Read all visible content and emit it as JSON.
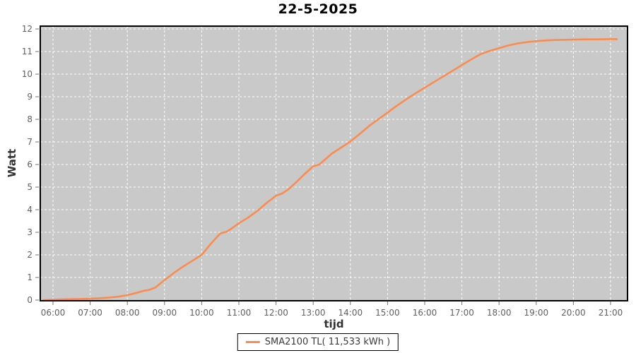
{
  "title": "22-5-2025",
  "axes": {
    "y_label": "Watt",
    "x_label": "tijd",
    "y_ticks": [
      0,
      1,
      2,
      3,
      4,
      5,
      6,
      7,
      8,
      9,
      10,
      11,
      12
    ],
    "x_ticks": [
      "06:00",
      "07:00",
      "08:00",
      "09:00",
      "10:00",
      "11:00",
      "12:00",
      "13:00",
      "14:00",
      "15:00",
      "16:00",
      "17:00",
      "18:00",
      "19:00",
      "20:00",
      "21:00"
    ]
  },
  "legend": {
    "series_label": "SMA2100 TL( 11,533 kWh )"
  },
  "colors": {
    "line": "#fa8c51",
    "plot_bg": "#c9c9c9",
    "grid": "#ffffff",
    "border": "#000000",
    "tick": "#707070",
    "tick_text": "#606060"
  },
  "chart_data": {
    "type": "line",
    "title": "22-5-2025",
    "xlabel": "tijd",
    "ylabel": "Watt",
    "ylim": [
      0,
      12
    ],
    "x_range": [
      "05:40",
      "21:27"
    ],
    "grid": true,
    "legend_position": "bottom-center",
    "series": [
      {
        "name": "SMA2100 TL( 11,533 kWh )",
        "total_kwh_label": "11,533 kWh",
        "points": [
          [
            "05:45",
            0.0
          ],
          [
            "06:00",
            0.02
          ],
          [
            "06:15",
            0.03
          ],
          [
            "06:30",
            0.04
          ],
          [
            "06:45",
            0.05
          ],
          [
            "07:00",
            0.06
          ],
          [
            "07:15",
            0.08
          ],
          [
            "07:30",
            0.11
          ],
          [
            "07:45",
            0.15
          ],
          [
            "08:00",
            0.22
          ],
          [
            "08:15",
            0.32
          ],
          [
            "08:25",
            0.4
          ],
          [
            "08:35",
            0.45
          ],
          [
            "08:45",
            0.55
          ],
          [
            "09:00",
            0.88
          ],
          [
            "09:15",
            1.2
          ],
          [
            "09:30",
            1.48
          ],
          [
            "09:45",
            1.74
          ],
          [
            "10:00",
            2.0
          ],
          [
            "10:15",
            2.5
          ],
          [
            "10:30",
            2.95
          ],
          [
            "10:40",
            3.02
          ],
          [
            "10:50",
            3.2
          ],
          [
            "11:00",
            3.4
          ],
          [
            "11:15",
            3.65
          ],
          [
            "11:30",
            3.95
          ],
          [
            "11:45",
            4.3
          ],
          [
            "12:00",
            4.62
          ],
          [
            "12:10",
            4.72
          ],
          [
            "12:20",
            4.9
          ],
          [
            "12:30",
            5.15
          ],
          [
            "12:45",
            5.55
          ],
          [
            "13:00",
            5.92
          ],
          [
            "13:10",
            6.0
          ],
          [
            "13:30",
            6.48
          ],
          [
            "13:45",
            6.75
          ],
          [
            "14:00",
            7.02
          ],
          [
            "14:15",
            7.35
          ],
          [
            "14:30",
            7.7
          ],
          [
            "14:45",
            8.0
          ],
          [
            "15:00",
            8.3
          ],
          [
            "15:15",
            8.6
          ],
          [
            "15:30",
            8.88
          ],
          [
            "15:45",
            9.15
          ],
          [
            "16:00",
            9.4
          ],
          [
            "16:15",
            9.65
          ],
          [
            "16:30",
            9.9
          ],
          [
            "16:45",
            10.15
          ],
          [
            "17:00",
            10.4
          ],
          [
            "17:15",
            10.65
          ],
          [
            "17:30",
            10.88
          ],
          [
            "17:45",
            11.03
          ],
          [
            "18:00",
            11.15
          ],
          [
            "18:15",
            11.27
          ],
          [
            "18:30",
            11.36
          ],
          [
            "18:45",
            11.42
          ],
          [
            "19:00",
            11.46
          ],
          [
            "19:15",
            11.49
          ],
          [
            "19:30",
            11.51
          ],
          [
            "19:45",
            11.52
          ],
          [
            "20:00",
            11.53
          ],
          [
            "20:20",
            11.54
          ],
          [
            "20:40",
            11.54
          ],
          [
            "21:00",
            11.55
          ],
          [
            "21:10",
            11.55
          ]
        ]
      }
    ]
  }
}
